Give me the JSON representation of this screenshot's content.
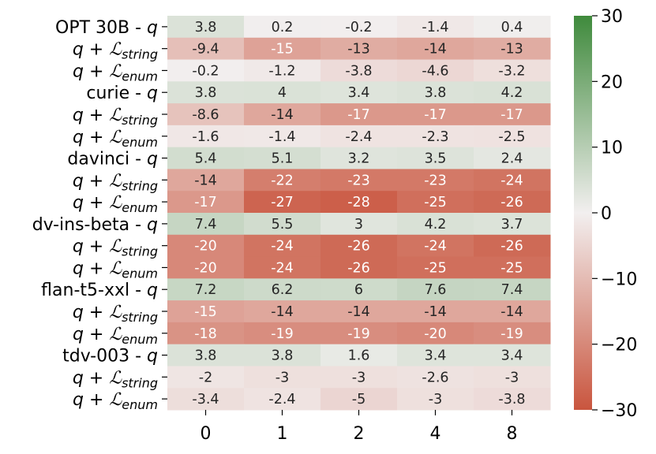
{
  "chart_data": {
    "type": "heatmap",
    "title": "",
    "xlabel": "",
    "ylabel": "",
    "x_categories": [
      "0",
      "1",
      "2",
      "4",
      "8"
    ],
    "rows": [
      {
        "label": "OPT 30B - q",
        "values": [
          3.8,
          0.2,
          -0.2,
          -1.4,
          0.4
        ]
      },
      {
        "label": "q + L_string",
        "values": [
          -9.4,
          -15,
          -13,
          -14,
          -13
        ]
      },
      {
        "label": "q + L_enum",
        "values": [
          -0.2,
          -1.2,
          -3.8,
          -4.6,
          -3.2
        ]
      },
      {
        "label": "curie - q",
        "values": [
          3.8,
          4,
          3.4,
          3.8,
          4.2
        ]
      },
      {
        "label": "q + L_string",
        "values": [
          -8.6,
          -14,
          -17,
          -17,
          -17
        ]
      },
      {
        "label": "q + L_enum",
        "values": [
          -1.6,
          -1.4,
          -2.4,
          -2.3,
          -2.5
        ]
      },
      {
        "label": "davinci - q",
        "values": [
          5.4,
          5.1,
          3.2,
          3.5,
          2.4
        ]
      },
      {
        "label": "q + L_string",
        "values": [
          -14,
          -22,
          -23,
          -23,
          -24
        ]
      },
      {
        "label": "q + L_enum",
        "values": [
          -17,
          -27,
          -28,
          -25,
          -26
        ]
      },
      {
        "label": "dv-ins-beta - q",
        "values": [
          7.4,
          5.5,
          3,
          4.2,
          3.7
        ]
      },
      {
        "label": "q + L_string",
        "values": [
          -20,
          -24,
          -26,
          -24,
          -26
        ]
      },
      {
        "label": "q + L_enum",
        "values": [
          -20,
          -24,
          -26,
          -25,
          -25
        ]
      },
      {
        "label": "flan-t5-xxl - q",
        "values": [
          7.2,
          6.2,
          6,
          7.6,
          7.4
        ]
      },
      {
        "label": "q + L_string",
        "values": [
          -15,
          -14,
          -14,
          -14,
          -14
        ]
      },
      {
        "label": "q + L_enum",
        "values": [
          -18,
          -19,
          -19,
          -20,
          -19
        ]
      },
      {
        "label": "tdv-003 - q",
        "values": [
          3.8,
          3.8,
          1.6,
          3.4,
          3.4
        ]
      },
      {
        "label": "q + L_string",
        "values": [
          -2,
          -3,
          -3,
          -2.6,
          -3
        ]
      },
      {
        "label": "q + L_enum",
        "values": [
          -3.4,
          -2.4,
          -5,
          -3,
          -3.8
        ]
      }
    ],
    "colorbar": {
      "range": [
        -30,
        30
      ],
      "ticks": [
        "30",
        "20",
        "10",
        "0",
        "−10",
        "−20",
        "−30"
      ],
      "colors": {
        "low": "#c9553e",
        "mid": "#f2efef",
        "high": "#3f8a3c"
      }
    }
  }
}
